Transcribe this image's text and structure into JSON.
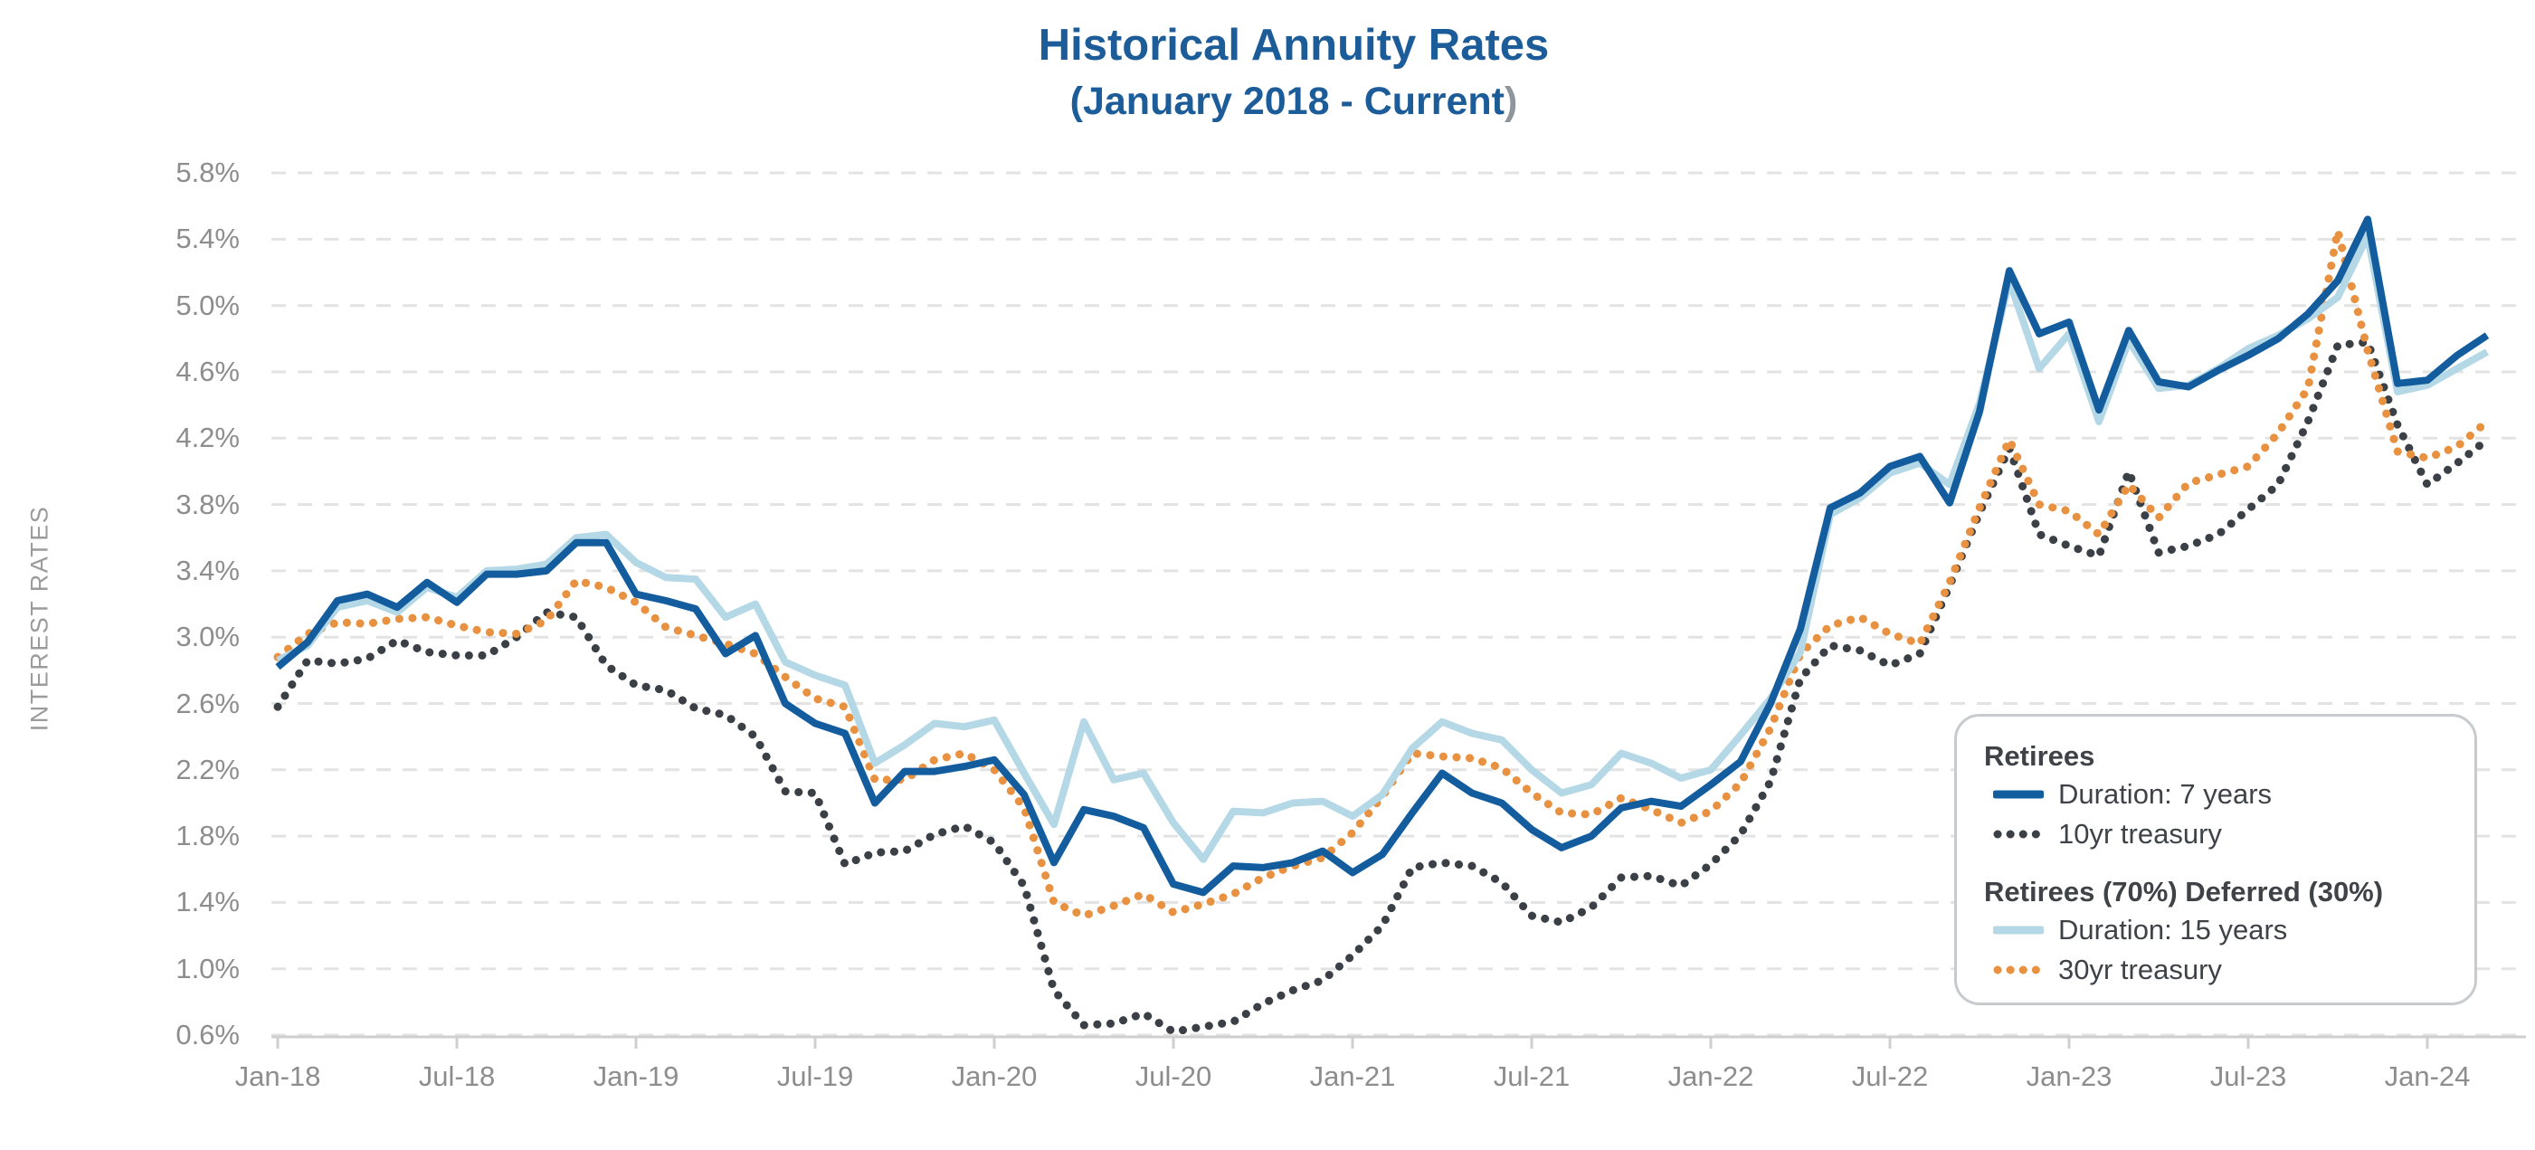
{
  "title": {
    "line1": "Historical Annuity Rates",
    "line2_main": "(January 2018 - Current",
    "line2_paren": ")"
  },
  "y_axis": {
    "label": "INTEREST RATES",
    "ticks": [
      "5.8%",
      "5.4%",
      "5.0%",
      "4.6%",
      "4.2%",
      "3.8%",
      "3.4%",
      "3.0%",
      "2.6%",
      "2.2%",
      "1.8%",
      "1.4%",
      "1.0%",
      "0.6%"
    ],
    "min": 0.6,
    "max": 5.8,
    "step": 0.4
  },
  "x_axis": {
    "tick_every_months": 6,
    "ticks": [
      "Jan-18",
      "Jul-18",
      "Jan-19",
      "Jul-19",
      "Jan-20",
      "Jul-20",
      "Jan-21",
      "Jul-21",
      "Jan-22",
      "Jul-22",
      "Jan-23",
      "Jul-23",
      "Jan-24"
    ]
  },
  "legend": {
    "group1_header": "Retirees",
    "group1_items": [
      {
        "label": "Duration: 7 years",
        "series": "duration7",
        "style": "solid"
      },
      {
        "label": "10yr treasury",
        "series": "treasury10",
        "style": "dotted"
      }
    ],
    "group2_header": "Retirees (70%) Deferred (30%)",
    "group2_items": [
      {
        "label": "Duration: 15 years",
        "series": "duration15",
        "style": "solid"
      },
      {
        "label": "30yr treasury",
        "series": "treasury30",
        "style": "dotted"
      }
    ]
  },
  "colors": {
    "duration7": "#135d9e",
    "duration15": "#b4d8e6",
    "treasury10": "#3b4046",
    "treasury30": "#e89140",
    "title_blue": "#1b5c99",
    "axis_label_gray": "#8d8d8d",
    "gridline": "#e3e3e3",
    "axis_line": "#cfcfcf",
    "legend_border": "#c7cbcd",
    "legend_text": "#3f4347"
  },
  "chart_data": {
    "type": "line",
    "title": "Historical Annuity Rates",
    "subtitle": "(January 2018 - Current)",
    "xlabel": "",
    "ylabel": "INTEREST RATES",
    "ylim": [
      0.6,
      5.8
    ],
    "grid": "horizontal-dashed",
    "legend_position": "inside-right",
    "x": [
      "Jan-18",
      "Feb-18",
      "Mar-18",
      "Apr-18",
      "May-18",
      "Jun-18",
      "Jul-18",
      "Aug-18",
      "Sep-18",
      "Oct-18",
      "Nov-18",
      "Dec-18",
      "Jan-19",
      "Feb-19",
      "Mar-19",
      "Apr-19",
      "May-19",
      "Jun-19",
      "Jul-19",
      "Aug-19",
      "Sep-19",
      "Oct-19",
      "Nov-19",
      "Dec-19",
      "Jan-20",
      "Feb-20",
      "Mar-20",
      "Apr-20",
      "May-20",
      "Jun-20",
      "Jul-20",
      "Aug-20",
      "Sep-20",
      "Oct-20",
      "Nov-20",
      "Dec-20",
      "Jan-21",
      "Feb-21",
      "Mar-21",
      "Apr-21",
      "May-21",
      "Jun-21",
      "Jul-21",
      "Aug-21",
      "Sep-21",
      "Oct-21",
      "Nov-21",
      "Dec-21",
      "Jan-22",
      "Feb-22",
      "Mar-22",
      "Apr-22",
      "May-22",
      "Jun-22",
      "Jul-22",
      "Aug-22",
      "Sep-22",
      "Oct-22",
      "Nov-22",
      "Dec-22",
      "Jan-23",
      "Feb-23",
      "Mar-23",
      "Apr-23",
      "May-23",
      "Jun-23",
      "Jul-23",
      "Aug-23",
      "Sep-23",
      "Oct-23",
      "Nov-23",
      "Dec-23",
      "Jan-24",
      "Feb-24",
      "Mar-24"
    ],
    "series": [
      {
        "name": "Duration: 7 years",
        "group": "Retirees",
        "style": "solid",
        "color_key": "duration7",
        "values": [
          2.82,
          2.97,
          3.22,
          3.26,
          3.18,
          3.33,
          3.21,
          3.38,
          3.38,
          3.4,
          3.57,
          3.57,
          3.26,
          3.22,
          3.17,
          2.9,
          3.01,
          2.6,
          2.48,
          2.42,
          2.0,
          2.19,
          2.19,
          2.22,
          2.26,
          2.05,
          1.64,
          1.96,
          1.92,
          1.85,
          1.51,
          1.46,
          1.62,
          1.61,
          1.64,
          1.71,
          1.58,
          1.69,
          1.94,
          2.18,
          2.06,
          2.0,
          1.84,
          1.73,
          1.8,
          1.97,
          2.01,
          1.98,
          2.11,
          2.25,
          2.6,
          3.05,
          3.78,
          3.87,
          4.03,
          4.09,
          3.81,
          4.36,
          5.21,
          4.83,
          4.9,
          4.37,
          4.85,
          4.54,
          4.51,
          4.61,
          4.7,
          4.8,
          4.95,
          5.15,
          5.52,
          4.53,
          4.55,
          4.7,
          4.82
        ]
      },
      {
        "name": "10yr treasury",
        "group": "Retirees",
        "style": "dotted",
        "color_key": "treasury10",
        "values": [
          2.58,
          2.86,
          2.84,
          2.87,
          2.98,
          2.91,
          2.89,
          2.89,
          3.0,
          3.15,
          3.12,
          2.83,
          2.71,
          2.68,
          2.57,
          2.53,
          2.4,
          2.07,
          2.06,
          1.63,
          1.7,
          1.71,
          1.81,
          1.86,
          1.76,
          1.5,
          0.87,
          0.66,
          0.67,
          0.73,
          0.62,
          0.65,
          0.68,
          0.79,
          0.87,
          0.93,
          1.08,
          1.26,
          1.61,
          1.64,
          1.62,
          1.52,
          1.32,
          1.28,
          1.37,
          1.55,
          1.56,
          1.5,
          1.63,
          1.81,
          2.13,
          2.75,
          2.95,
          2.92,
          2.83,
          2.9,
          3.31,
          3.75,
          4.14,
          3.62,
          3.55,
          3.49,
          4.0,
          3.51,
          3.55,
          3.62,
          3.77,
          3.92,
          4.3,
          4.76,
          4.78,
          4.28,
          3.92,
          4.05,
          4.19
        ]
      },
      {
        "name": "Duration: 15 years",
        "group": "Retirees (70%) Deferred (30%)",
        "style": "solid",
        "color_key": "duration15",
        "values": [
          2.86,
          2.95,
          3.18,
          3.22,
          3.15,
          3.3,
          3.24,
          3.4,
          3.41,
          3.44,
          3.6,
          3.62,
          3.45,
          3.36,
          3.35,
          3.12,
          3.2,
          2.85,
          2.77,
          2.71,
          2.24,
          2.35,
          2.48,
          2.46,
          2.5,
          2.18,
          1.87,
          2.49,
          2.14,
          2.18,
          1.88,
          1.66,
          1.95,
          1.94,
          2.0,
          2.01,
          1.92,
          2.05,
          2.33,
          2.49,
          2.42,
          2.38,
          2.2,
          2.06,
          2.11,
          2.3,
          2.24,
          2.15,
          2.2,
          2.41,
          2.63,
          2.91,
          3.74,
          3.84,
          3.99,
          4.05,
          3.92,
          4.41,
          5.15,
          4.62,
          4.83,
          4.3,
          4.79,
          4.5,
          4.52,
          4.62,
          4.74,
          4.82,
          4.92,
          5.05,
          5.42,
          4.48,
          4.52,
          4.62,
          4.72
        ]
      },
      {
        "name": "30yr treasury",
        "group": "Retirees (70%) Deferred (30%)",
        "style": "dotted",
        "color_key": "treasury30",
        "values": [
          2.88,
          3.02,
          3.09,
          3.08,
          3.11,
          3.12,
          3.07,
          3.03,
          3.02,
          3.1,
          3.34,
          3.3,
          3.21,
          3.06,
          3.01,
          2.96,
          2.9,
          2.76,
          2.63,
          2.58,
          2.14,
          2.14,
          2.26,
          2.3,
          2.2,
          1.97,
          1.4,
          1.32,
          1.38,
          1.45,
          1.34,
          1.39,
          1.45,
          1.55,
          1.62,
          1.67,
          1.82,
          2.04,
          2.3,
          2.28,
          2.27,
          2.21,
          2.06,
          1.94,
          1.93,
          2.03,
          1.96,
          1.88,
          1.95,
          2.12,
          2.45,
          2.9,
          3.07,
          3.12,
          3.02,
          2.96,
          3.33,
          3.78,
          4.19,
          3.8,
          3.76,
          3.62,
          3.92,
          3.72,
          3.93,
          3.98,
          4.03,
          4.23,
          4.5,
          5.45,
          4.73,
          4.12,
          4.08,
          4.15,
          4.3
        ]
      }
    ]
  }
}
